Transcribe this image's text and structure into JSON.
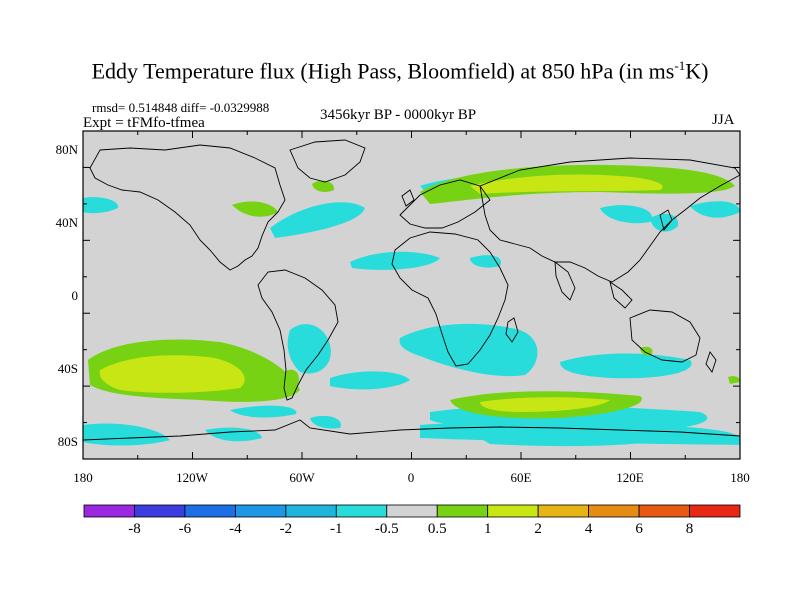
{
  "header": {
    "title_main": "Eddy Temperature flux (High Pass, Bloomfield) at 850 hPa (in ms",
    "title_sup": "-1",
    "title_end": "K)",
    "stats": "rmsd= 0.514848 diff= -0.0329988",
    "experiment": "Expt = tFMfo-tfmea",
    "period": "3456kyr BP - 0000kyr BP",
    "season": "JJA"
  },
  "map": {
    "lat_labels": [
      "80N",
      "40N",
      "0",
      "40S",
      "80S"
    ],
    "lon_labels": [
      "180",
      "120W",
      "60W",
      "0",
      "60E",
      "120E",
      "180"
    ],
    "background_color": "#d3d3d3"
  },
  "colorbar": {
    "colors": [
      "#9a28e0",
      "#3c3ce0",
      "#1e6ee6",
      "#1e96e6",
      "#1eb4dc",
      "#28dcdc",
      "#d3d3d3",
      "#78d214",
      "#c8e614",
      "#e6b414",
      "#e68c14",
      "#e65a14",
      "#e62814"
    ],
    "labels": [
      "-8",
      "-6",
      "-4",
      "-2",
      "-1",
      "-0.5",
      "0.5",
      "1",
      "2",
      "4",
      "6",
      "8"
    ]
  }
}
